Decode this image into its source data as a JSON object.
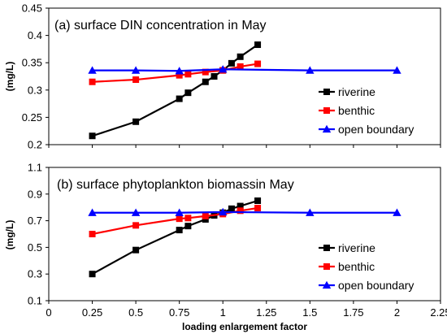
{
  "chart_data": [
    {
      "type": "line",
      "title": "(a) surface DIN concentration in May",
      "ylabel": "(mg/L)",
      "xlabel": "",
      "xlim": [
        0,
        2.25
      ],
      "ylim": [
        0.2,
        0.45
      ],
      "xticks": [
        "0",
        "0.25",
        "0.5",
        "0.75",
        "1",
        "1.25",
        "1.5",
        "1.75",
        "2",
        "2.25"
      ],
      "yticks": [
        "0.2",
        "0.25",
        "0.3",
        "0.35",
        "0.4",
        "0.45"
      ],
      "legend_position": "right",
      "series": [
        {
          "name": "riverine",
          "color": "#000000",
          "marker": "square",
          "x": [
            0.25,
            0.5,
            0.75,
            0.8,
            0.9,
            0.95,
            1.0,
            1.05,
            1.1,
            1.2
          ],
          "y": [
            0.216,
            0.242,
            0.284,
            0.295,
            0.315,
            0.325,
            0.336,
            0.349,
            0.361,
            0.383
          ]
        },
        {
          "name": "benthic",
          "color": "#ff0000",
          "marker": "square",
          "x": [
            0.25,
            0.5,
            0.75,
            0.8,
            0.9,
            1.0,
            1.1,
            1.2
          ],
          "y": [
            0.315,
            0.319,
            0.327,
            0.329,
            0.333,
            0.336,
            0.343,
            0.348
          ]
        },
        {
          "name": "open boundary",
          "color": "#0000ff",
          "marker": "triangle",
          "x": [
            0.25,
            0.5,
            0.75,
            1.0,
            1.5,
            2.0
          ],
          "y": [
            0.336,
            0.336,
            0.335,
            0.338,
            0.336,
            0.336
          ]
        }
      ]
    },
    {
      "type": "line",
      "title": "(b) surface phytoplankton biomassin May",
      "ylabel": "(mg/L)",
      "xlabel": "loading enlargement factor",
      "xlim": [
        0,
        2.25
      ],
      "ylim": [
        0.1,
        1.1
      ],
      "xticks": [
        "0",
        "0.25",
        "0.5",
        "0.75",
        "1",
        "1.25",
        "1.5",
        "1.75",
        "2",
        "2.25"
      ],
      "yticks": [
        "0.1",
        "0.3",
        "0.5",
        "0.7",
        "0.9",
        "1.1"
      ],
      "legend_position": "right",
      "series": [
        {
          "name": "riverine",
          "color": "#000000",
          "marker": "square",
          "x": [
            0.25,
            0.5,
            0.75,
            0.8,
            0.9,
            0.95,
            1.0,
            1.05,
            1.1,
            1.2
          ],
          "y": [
            0.3,
            0.48,
            0.63,
            0.66,
            0.71,
            0.74,
            0.76,
            0.79,
            0.81,
            0.85
          ]
        },
        {
          "name": "benthic",
          "color": "#ff0000",
          "marker": "square",
          "x": [
            0.25,
            0.5,
            0.75,
            0.8,
            0.9,
            1.0,
            1.1,
            1.2
          ],
          "y": [
            0.6,
            0.665,
            0.715,
            0.72,
            0.735,
            0.75,
            0.775,
            0.795
          ]
        },
        {
          "name": "open boundary",
          "color": "#0000ff",
          "marker": "triangle",
          "x": [
            0.25,
            0.5,
            0.75,
            1.0,
            1.5,
            2.0
          ],
          "y": [
            0.76,
            0.76,
            0.76,
            0.765,
            0.76,
            0.76
          ]
        }
      ]
    }
  ]
}
